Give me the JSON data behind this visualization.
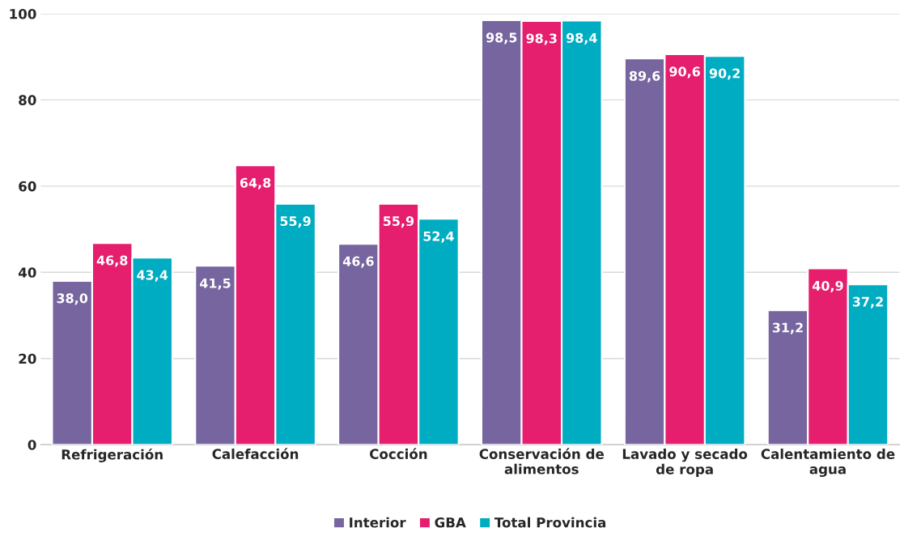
{
  "chart_data": {
    "type": "bar",
    "categories": [
      "Refrigeración",
      "Calefacción",
      "Cocción",
      "Conservación de\nalimentos",
      "Lavado y secado\nde ropa",
      "Calentamiento de\nagua"
    ],
    "series": [
      {
        "name": "Interior",
        "color": "#76659f",
        "values": [
          38.0,
          41.5,
          46.6,
          98.5,
          89.6,
          31.2
        ],
        "value_labels": [
          "38,0",
          "41,5",
          "46,6",
          "98,5",
          "89,6",
          "31,2"
        ]
      },
      {
        "name": "GBA",
        "color": "#e61e6e",
        "values": [
          46.8,
          64.8,
          55.9,
          98.3,
          90.6,
          40.9
        ],
        "value_labels": [
          "46,8",
          "64,8",
          "55,9",
          "98,3",
          "90,6",
          "40,9"
        ]
      },
      {
        "name": "Total Provincia",
        "color": "#00acc1",
        "values": [
          43.4,
          55.9,
          52.4,
          98.4,
          90.2,
          37.2
        ],
        "value_labels": [
          "43,4",
          "55,9",
          "52,4",
          "98,4",
          "90,2",
          "37,2"
        ]
      }
    ],
    "ylim": [
      0,
      100
    ],
    "yticks": [
      0,
      20,
      40,
      60,
      80,
      100
    ],
    "grid": "y",
    "legend": "bottom"
  }
}
